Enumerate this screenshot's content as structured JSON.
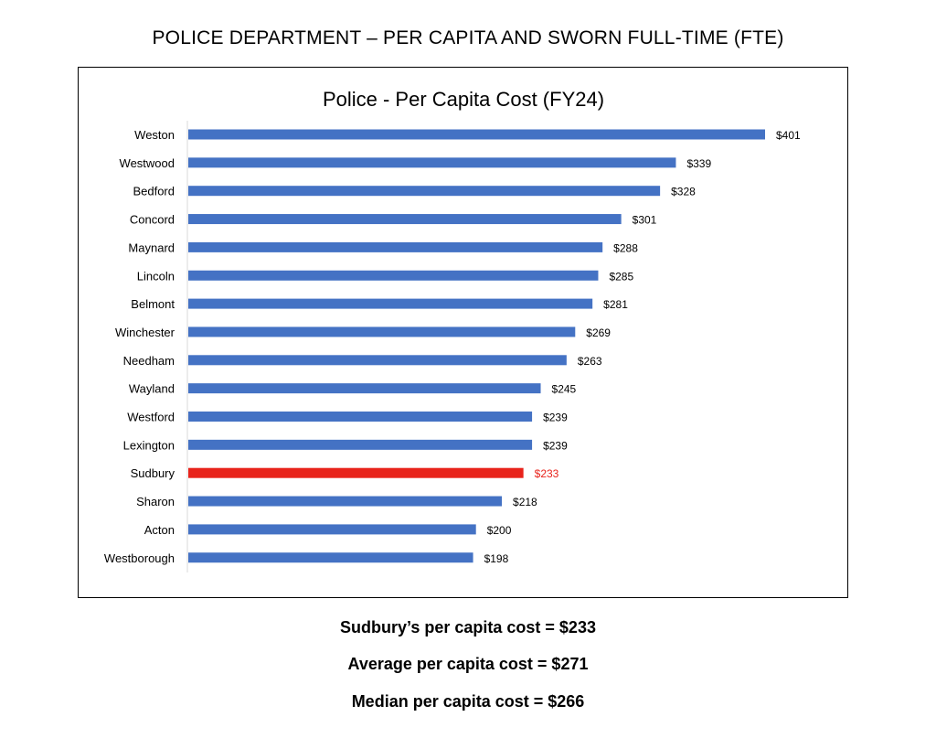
{
  "page": {
    "heading": "POLICE DEPARTMENT – PER CAPITA AND SWORN FULL-TIME (FTE)"
  },
  "summary": {
    "sudbury": "Sudbury’s per capita cost = $233",
    "average": "Average per capita cost = $271",
    "median": "Median per capita cost = $266"
  },
  "chart_data": {
    "type": "bar",
    "orientation": "horizontal",
    "title": "Police - Per Capita Cost (FY24)",
    "xlabel": "",
    "ylabel": "",
    "xlim": [
      0,
      410
    ],
    "grid": false,
    "legend": "none",
    "value_prefix": "$",
    "bar_color": "#4472C4",
    "highlight_color": "#E8231B",
    "highlight_category": "Sudbury",
    "categories": [
      "Weston",
      "Westwood",
      "Bedford",
      "Concord",
      "Maynard",
      "Lincoln",
      "Belmont",
      "Winchester",
      "Needham",
      "Wayland",
      "Westford",
      "Lexington",
      "Sudbury",
      "Sharon",
      "Acton",
      "Westborough"
    ],
    "values": [
      401,
      339,
      328,
      301,
      288,
      285,
      281,
      269,
      263,
      245,
      239,
      239,
      233,
      218,
      200,
      198
    ]
  }
}
